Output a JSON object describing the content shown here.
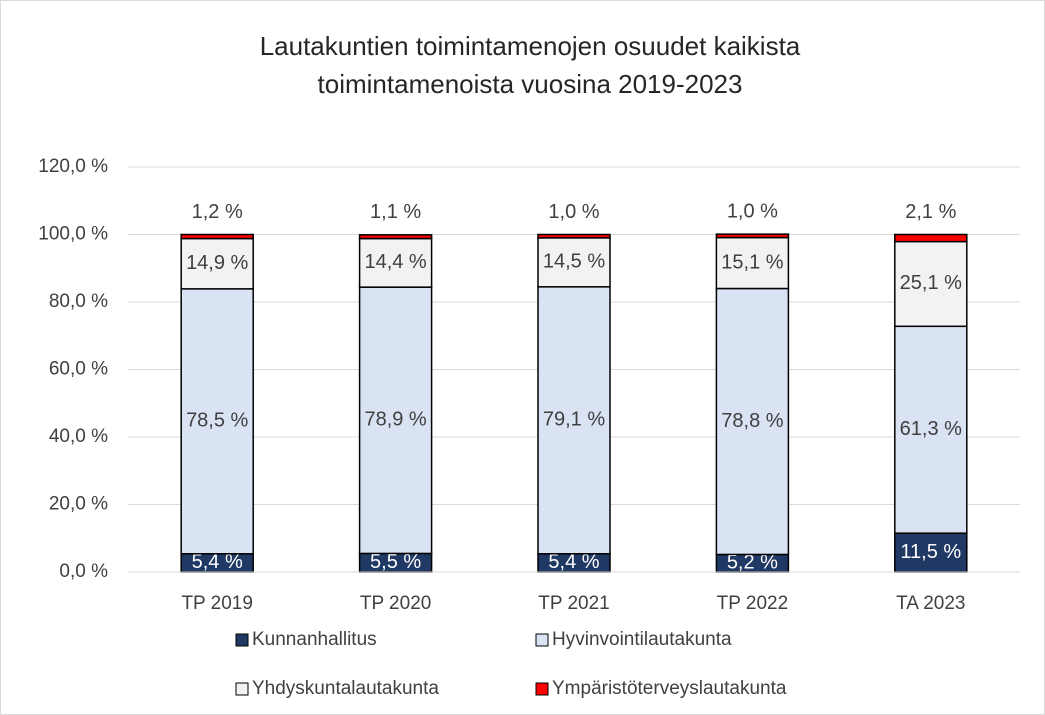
{
  "chart_data": {
    "type": "stacked_bar",
    "title": [
      "Lautakuntien toimintamenojen osuudet kaikista",
      "toimintamenoista vuosina 2019-2023"
    ],
    "categories": [
      "TP 2019",
      "TP 2020",
      "TP 2021",
      "TP 2022",
      "TA 2023"
    ],
    "series": [
      {
        "name": "Kunnanhallitus",
        "color": "#1f3864",
        "values": [
          5.4,
          5.5,
          5.4,
          5.2,
          11.5
        ],
        "value_labels": [
          "5,4 %",
          "5,5 %",
          "5,4 %",
          "5,2 %",
          "11,5 %"
        ]
      },
      {
        "name": "Hyvinvointilautakunta",
        "color": "#dae3f3",
        "values": [
          78.5,
          78.9,
          79.1,
          78.8,
          61.3
        ],
        "value_labels": [
          "78,5 %",
          "78,9 %",
          "79,1 %",
          "78,8 %",
          "61,3 %"
        ]
      },
      {
        "name": "Yhdyskuntalautakunta",
        "color": "#f2f2f2",
        "values": [
          14.9,
          14.4,
          14.5,
          15.1,
          25.1
        ],
        "value_labels": [
          "14,9 %",
          "14,4 %",
          "14,5 %",
          "15,1 %",
          "25,1 %"
        ]
      },
      {
        "name": "Ympäristöterveyslautakunta",
        "color": "#ff0000",
        "values": [
          1.2,
          1.1,
          1.0,
          1.0,
          2.1
        ],
        "value_labels": [
          "1,2 %",
          "1,1 %",
          "1,0 %",
          "1,0 %",
          "2,1 %"
        ]
      }
    ],
    "ylim": [
      0,
      120
    ],
    "yticks": [
      {
        "value": 0,
        "label": "0,0 %"
      },
      {
        "value": 20,
        "label": "20,0 %"
      },
      {
        "value": 40,
        "label": "40,0 %"
      },
      {
        "value": 60,
        "label": "60,0 %"
      },
      {
        "value": 80,
        "label": "80,0 %"
      },
      {
        "value": 100,
        "label": "100,0 %"
      },
      {
        "value": 120,
        "label": "120,0 %"
      }
    ],
    "grid": true,
    "legend": "bottom"
  }
}
